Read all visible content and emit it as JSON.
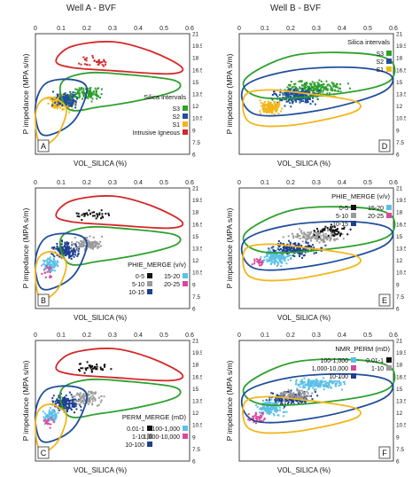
{
  "headers": {
    "well_a": "Well A - BVF",
    "well_b": "Well B - BVF"
  },
  "chart_data": [
    {
      "type": "scatter",
      "panel": "A",
      "well": "Well A",
      "xlabel": "VOL_SILICA (%)",
      "ylabel": "P impedance (MPA s/m)",
      "xlim": [
        0,
        0.6
      ],
      "ylim": [
        6,
        21
      ],
      "x_ticks": [
        "0",
        "0.1",
        "0.2",
        "0.3",
        "0.4",
        "0.5",
        "0.6"
      ],
      "y_ticks": [
        "6",
        "7.5",
        "9",
        "10.5",
        "12",
        "13.5",
        "15",
        "16.5",
        "18",
        "19.5",
        "21"
      ],
      "legend_title": "Silica intervals",
      "legend_position": "bottom-right",
      "series": [
        {
          "name": "S3",
          "color": "#2ca02c"
        },
        {
          "name": "S2",
          "color": "#1f4e9c"
        },
        {
          "name": "S1",
          "color": "#f2b61a"
        },
        {
          "name": "Intrusive Igneous",
          "color": "#d62728"
        }
      ]
    },
    {
      "type": "scatter",
      "panel": "D",
      "well": "Well B",
      "xlabel": "VOL_SILICA (%)",
      "ylabel": "P impedance (MPA s/m)",
      "xlim": [
        0,
        0.6
      ],
      "ylim": [
        6,
        21
      ],
      "x_ticks": [
        "0",
        "0.1",
        "0.2",
        "0.3",
        "0.4",
        "0.5",
        "0.6"
      ],
      "y_ticks": [
        "6",
        "7.5",
        "9",
        "10.5",
        "12",
        "13.5",
        "15",
        "16.5",
        "18",
        "19.5",
        "21"
      ],
      "legend_title": "Silica intervals",
      "legend_position": "top-right",
      "series": [
        {
          "name": "S3",
          "color": "#2ca02c"
        },
        {
          "name": "S2",
          "color": "#1f4e9c"
        },
        {
          "name": "S1",
          "color": "#f2b61a"
        }
      ]
    },
    {
      "type": "scatter",
      "panel": "B",
      "well": "Well A",
      "xlabel": "VOL_SILICA (%)",
      "ylabel": "P impedance (MPA s/m)",
      "xlim": [
        0,
        0.6
      ],
      "ylim": [
        6,
        21
      ],
      "x_ticks": [
        "0",
        "0.1",
        "0.2",
        "0.3",
        "0.4",
        "0.5",
        "0.6"
      ],
      "y_ticks": [
        "6",
        "7.5",
        "9",
        "10.5",
        "12",
        "13.5",
        "15",
        "16.5",
        "18",
        "19.5",
        "21"
      ],
      "legend_title": "PHIE_MERGE (v/v)",
      "legend_position": "bottom-right",
      "series": [
        {
          "name": "0-5",
          "color": "#111111"
        },
        {
          "name": "15-20",
          "color": "#5bc0e8"
        },
        {
          "name": "5-10",
          "color": "#9a9a9a"
        },
        {
          "name": "20-25",
          "color": "#d9479a"
        },
        {
          "name": "10-15",
          "color": "#1f3f8f"
        }
      ]
    },
    {
      "type": "scatter",
      "panel": "E",
      "well": "Well B",
      "xlabel": "VOL_SILICA (%)",
      "ylabel": "P impedance (MPA s/m)",
      "xlim": [
        0,
        0.6
      ],
      "ylim": [
        6,
        21
      ],
      "x_ticks": [
        "0",
        "0.1",
        "0.2",
        "0.3",
        "0.4",
        "0.5",
        "0.6"
      ],
      "y_ticks": [
        "6",
        "7.5",
        "9",
        "10.5",
        "12",
        "13.5",
        "15",
        "16.5",
        "18",
        "19.5",
        "21"
      ],
      "legend_title": "PHIE_MERGE (v/v)",
      "legend_position": "top-right",
      "series": [
        {
          "name": "0-5",
          "color": "#111111"
        },
        {
          "name": "15-20",
          "color": "#5bc0e8"
        },
        {
          "name": "5-10",
          "color": "#9a9a9a"
        },
        {
          "name": "20-25",
          "color": "#d9479a"
        },
        {
          "name": "10-15",
          "color": "#1f3f8f"
        }
      ]
    },
    {
      "type": "scatter",
      "panel": "C",
      "well": "Well A",
      "xlabel": "VOL_SILICA (%)",
      "ylabel": "P impedance (MPA s/m)",
      "xlim": [
        0,
        0.6
      ],
      "ylim": [
        6,
        21
      ],
      "x_ticks": [
        "0",
        "0.1",
        "0.2",
        "0.3",
        "0.4",
        "0.5",
        "0.6"
      ],
      "y_ticks": [
        "6",
        "7.5",
        "9",
        "10.5",
        "12",
        "13.5",
        "15",
        "16.5",
        "18",
        "19.5",
        "21"
      ],
      "legend_title": "PERM_MERGE (mD)",
      "legend_position": "bottom-right",
      "series": [
        {
          "name": "0.01-1",
          "color": "#111111"
        },
        {
          "name": "100-1,000",
          "color": "#5bc0e8"
        },
        {
          "name": "1-10",
          "color": "#9a9a9a"
        },
        {
          "name": "1,000-10,000",
          "color": "#d9479a"
        },
        {
          "name": "10-100",
          "color": "#1f3f8f"
        }
      ]
    },
    {
      "type": "scatter",
      "panel": "F",
      "well": "Well B",
      "xlabel": "VOL_SILICA (%)",
      "ylabel": "P impedance (MPA s/m)",
      "xlim": [
        0,
        0.6
      ],
      "ylim": [
        6,
        21
      ],
      "x_ticks": [
        "0",
        "0.1",
        "0.2",
        "0.3",
        "0.4",
        "0.5",
        "0.6"
      ],
      "y_ticks": [
        "6",
        "7.5",
        "9",
        "10.5",
        "12",
        "13.5",
        "15",
        "16.5",
        "18",
        "19.5",
        "21"
      ],
      "legend_title": "NMR_PERM (mD)",
      "legend_position": "top-right",
      "series": [
        {
          "name": "100-1,000",
          "color": "#5bc0e8"
        },
        {
          "name": "0.01-1",
          "color": "#111111"
        },
        {
          "name": "1,000-10,000",
          "color": "#d9479a"
        },
        {
          "name": "1-10",
          "color": "#9a9a9a"
        },
        {
          "name": "10-100",
          "color": "#1f3f8f"
        }
      ]
    }
  ]
}
